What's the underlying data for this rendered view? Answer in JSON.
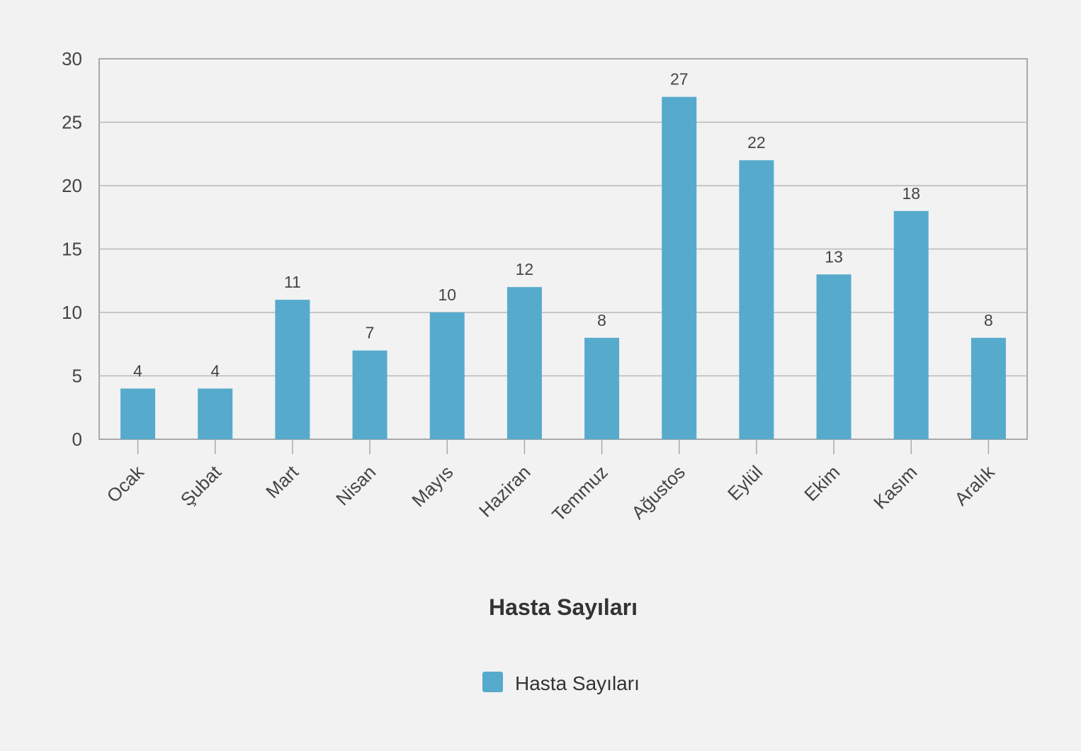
{
  "chart_data": {
    "type": "bar",
    "title": "",
    "xlabel": "Hasta Sayıları",
    "ylabel": "",
    "categories": [
      "Ocak",
      "Şubat",
      "Mart",
      "Nisan",
      "Mayıs",
      "Haziran",
      "Temmuz",
      "Ağustos",
      "Eylül",
      "Ekim",
      "Kasım",
      "Aralık"
    ],
    "series": [
      {
        "name": "Hasta Sayıları",
        "values": [
          4,
          4,
          11,
          7,
          10,
          12,
          8,
          27,
          22,
          13,
          18,
          8
        ],
        "color": "#56abcd"
      }
    ],
    "yticks": [
      0,
      5,
      10,
      15,
      20,
      25,
      30
    ],
    "ylim": [
      0,
      30
    ],
    "grid": true,
    "legend": "bottom-center",
    "data_labels": true
  },
  "colors": {
    "background": "#f2f2f2",
    "bar": "#56abcd",
    "grid": "#b8b8b8",
    "axis": "#aaaaaa"
  }
}
